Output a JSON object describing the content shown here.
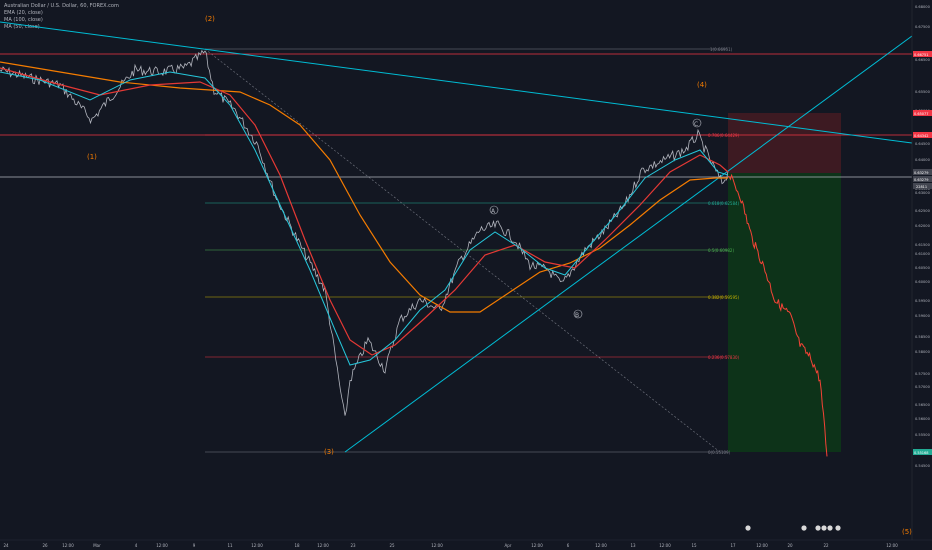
{
  "header": {
    "title": "Australian Dollar / U.S. Dollar, 60, FOREX.com",
    "indicators": [
      "EMA (20, close)",
      "MA (100, close)",
      "MA (50, close)"
    ]
  },
  "y_axis": {
    "ticks": [
      "0.68000",
      "0.67500",
      "0.66500",
      "0.65500",
      "0.65000",
      "0.64500",
      "0.64000",
      "0.63500",
      "0.63000",
      "0.62500",
      "0.62000",
      "0.61500",
      "0.61000",
      "0.60500",
      "0.60000",
      "0.59500",
      "0.59000",
      "0.58500",
      "0.58000",
      "0.57500",
      "0.57000",
      "0.56500",
      "0.56000",
      "0.55500",
      "0.54500"
    ],
    "badges": [
      {
        "id": "badge-66751",
        "text": "0.66751",
        "color": "#f23645"
      },
      {
        "id": "badge-65077",
        "text": "0.65077",
        "color": "#f23645"
      },
      {
        "id": "badge-64342",
        "text": "0.64342",
        "color": "#f23645"
      },
      {
        "id": "badge-63279",
        "text": "0.63279",
        "color": "#434651"
      },
      {
        "id": "badge-5212",
        "text": "0.63279",
        "color": "#434651"
      },
      {
        "id": "badge-22811",
        "text": "22811",
        "color": "#434651"
      },
      {
        "id": "badge-55168",
        "text": "0.55168",
        "color": "#22ab94"
      }
    ]
  },
  "x_axis": {
    "ticks": [
      "24",
      "26",
      "12:00",
      "Mar",
      "4",
      "12:00",
      "9",
      "11",
      "12:00",
      "18",
      "12:00",
      "23",
      "25",
      "12:00",
      "Apr",
      "12:00",
      "6",
      "12:00",
      "13",
      "12:00",
      "15",
      "17",
      "12:00",
      "20",
      "22",
      "12:00"
    ]
  },
  "fib_levels": [
    {
      "label": "1(0.66951)"
    },
    {
      "label": "0.786(0.64429)"
    },
    {
      "label": "0.618(0.62584)"
    },
    {
      "label": "0.5(0.60982)"
    },
    {
      "label": "0.382(0.59595)"
    },
    {
      "label": "0.236(0.57830)"
    },
    {
      "label": "0(0.55109)"
    }
  ],
  "wave_labels": [
    "(1)",
    "(2)",
    "(3)",
    "(4)",
    "(5)"
  ],
  "abc_labels": [
    "A",
    "B",
    "C"
  ],
  "colors": {
    "background": "#131722",
    "ema20": "#26c6da",
    "ma100": "#f57c00",
    "ma50": "#e53935",
    "trendline": "#00bcd4",
    "projection": "#f44336",
    "stop_zone": "#4a1c24",
    "target_zone": "#103820"
  }
}
